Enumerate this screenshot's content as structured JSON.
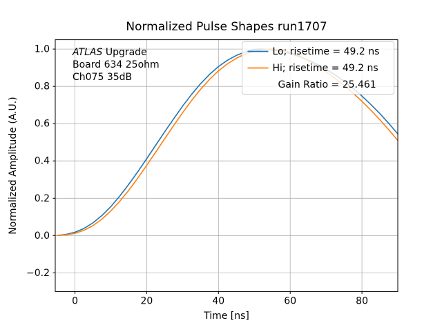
{
  "figure": {
    "background": "#ffffff"
  },
  "chart_data": {
    "type": "line",
    "title": "Normalized Pulse Shapes run1707",
    "xlabel": "Time [ns]",
    "ylabel": "Normalized Amplitude (A.U.)",
    "xlim": [
      -5.5,
      90
    ],
    "ylim": [
      -0.3,
      1.05
    ],
    "xticks": [
      0,
      20,
      40,
      60,
      80
    ],
    "yticks": [
      -0.2,
      0.0,
      0.2,
      0.4,
      0.6,
      0.8,
      1.0
    ],
    "grid": true,
    "grid_color": "#b0b0b0",
    "axis_color": "#000000",
    "x": [
      -5,
      -2.5,
      0,
      2.5,
      5,
      7.5,
      10,
      12.5,
      15,
      17.5,
      20,
      22.5,
      25,
      27.5,
      30,
      32.5,
      35,
      37.5,
      40,
      42.5,
      45,
      47.5,
      50,
      52.5,
      55,
      57.5,
      60,
      62.5,
      65,
      67.5,
      70,
      72.5,
      75,
      77.5,
      80,
      82.5,
      85,
      87.5,
      90
    ],
    "series": [
      {
        "name": "Lo; risetime = 49.2 ns",
        "color": "#1f77b4",
        "values": [
          0.0,
          0.006,
          0.018,
          0.038,
          0.068,
          0.107,
          0.155,
          0.212,
          0.275,
          0.342,
          0.412,
          0.484,
          0.556,
          0.626,
          0.694,
          0.757,
          0.814,
          0.864,
          0.906,
          0.94,
          0.966,
          0.985,
          0.999,
          1.0,
          0.995,
          0.987,
          0.976,
          0.96,
          0.941,
          0.919,
          0.892,
          0.862,
          0.828,
          0.79,
          0.748,
          0.703,
          0.654,
          0.601,
          0.545
        ]
      },
      {
        "name": "Hi; risetime = 49.2 ns",
        "color": "#ff7f0e",
        "values": [
          0.0,
          0.004,
          0.012,
          0.028,
          0.053,
          0.088,
          0.132,
          0.184,
          0.243,
          0.308,
          0.376,
          0.447,
          0.519,
          0.59,
          0.659,
          0.724,
          0.784,
          0.837,
          0.883,
          0.921,
          0.951,
          0.974,
          0.989,
          0.998,
          1.0,
          0.995,
          0.983,
          0.964,
          0.938,
          0.91,
          0.878,
          0.843,
          0.805,
          0.764,
          0.72,
          0.672,
          0.621,
          0.567,
          0.51
        ]
      }
    ],
    "legend": {
      "position": "upper right",
      "entries": [
        {
          "label": "Lo; risetime = 49.2 ns",
          "color": "#1f77b4"
        },
        {
          "label": "Hi; risetime = 49.2 ns",
          "color": "#ff7f0e"
        },
        {
          "label": "Gain Ratio = 25.461",
          "color": null
        }
      ]
    },
    "annotation": {
      "italic_word": "ATLAS",
      "lines": [
        "ATLAS Upgrade",
        "Board 634 25ohm",
        "Ch075 35dB"
      ]
    }
  }
}
